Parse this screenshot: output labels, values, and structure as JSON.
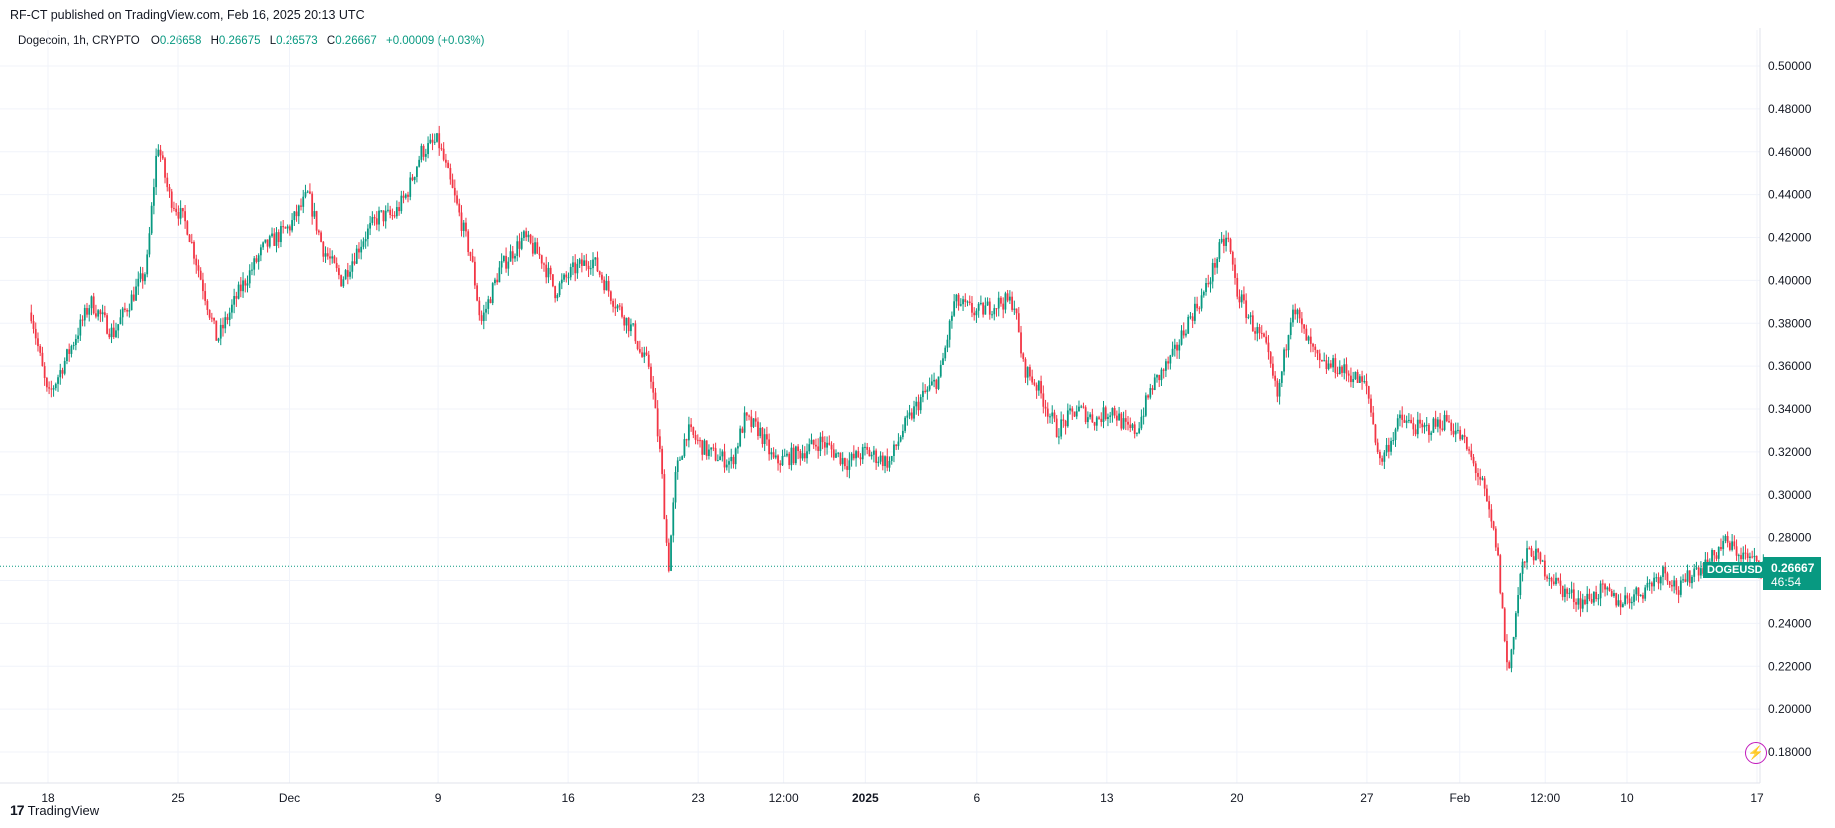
{
  "header": {
    "published": "RF-CT published on TradingView.com, Feb 16, 2025 20:13 UTC"
  },
  "legend": {
    "symbol": "Dogecoin, 1h, CRYPTO",
    "o_label": "O",
    "o": "0.26658",
    "h_label": "H",
    "h": "0.26675",
    "l_label": "L",
    "l": "0.26573",
    "c_label": "C",
    "c": "0.26667",
    "change": "+0.00009 (+0.03%)"
  },
  "price_tag": {
    "ticker": "DOGEUSD",
    "price": "0.26667",
    "countdown": "46:54"
  },
  "footer": {
    "brand": "TradingView",
    "logo": "17"
  },
  "colors": {
    "up": "#089981",
    "down": "#F23645",
    "grid": "#f0f3fa",
    "axis_text": "#131722",
    "last_price": "#089981",
    "bolt": "#c21bbd"
  },
  "icons": {
    "bolt": "lightning-bolt-icon",
    "logo": "tradingview-logo-icon"
  },
  "chart_data": {
    "type": "candlestick",
    "timeframe": "1h",
    "title": "Dogecoin, 1h, CRYPTO",
    "ylim": [
      0.17,
      0.51
    ],
    "y_ticks": [
      "0.50000",
      "0.48000",
      "0.46000",
      "0.44000",
      "0.42000",
      "0.40000",
      "0.38000",
      "0.36000",
      "0.34000",
      "0.32000",
      "0.30000",
      "0.28000",
      "0.26000",
      "0.24000",
      "0.22000",
      "0.20000",
      "0.18000"
    ],
    "x_ticks": [
      {
        "label": "18",
        "t": 1.2
      },
      {
        "label": "25",
        "t": 8.2
      },
      {
        "label": "Dec",
        "t": 14.2
      },
      {
        "label": "9",
        "t": 22.2
      },
      {
        "label": "16",
        "t": 29.2
      },
      {
        "label": "23",
        "t": 36.2
      },
      {
        "label": "12:00",
        "t": 40.8
      },
      {
        "label": "2025",
        "t": 45.2
      },
      {
        "label": "6",
        "t": 51.2
      },
      {
        "label": "13",
        "t": 58.2
      },
      {
        "label": "20",
        "t": 65.2
      },
      {
        "label": "27",
        "t": 72.2
      },
      {
        "label": "Feb",
        "t": 77.2
      },
      {
        "label": "12:00",
        "t": 81.8
      },
      {
        "label": "10",
        "t": 86.2
      },
      {
        "label": "17",
        "t": 93.2
      }
    ],
    "x_range": [
      0.3,
      93.6
    ],
    "grid": true,
    "last_price": 0.26667,
    "price_keypoints": [
      [
        0.3,
        0.385
      ],
      [
        1.2,
        0.345
      ],
      [
        2.5,
        0.37
      ],
      [
        3.5,
        0.39
      ],
      [
        4.7,
        0.375
      ],
      [
        6.5,
        0.405
      ],
      [
        7.1,
        0.465
      ],
      [
        7.7,
        0.44
      ],
      [
        8.7,
        0.425
      ],
      [
        10.3,
        0.372
      ],
      [
        11.5,
        0.395
      ],
      [
        12.8,
        0.415
      ],
      [
        14.2,
        0.425
      ],
      [
        15.2,
        0.44
      ],
      [
        16,
        0.415
      ],
      [
        17,
        0.4
      ],
      [
        18.2,
        0.42
      ],
      [
        19,
        0.43
      ],
      [
        19.8,
        0.43
      ],
      [
        20.5,
        0.44
      ],
      [
        21.3,
        0.46
      ],
      [
        22.2,
        0.465
      ],
      [
        23.2,
        0.435
      ],
      [
        24,
        0.41
      ],
      [
        24.5,
        0.38
      ],
      [
        25.5,
        0.405
      ],
      [
        26.8,
        0.42
      ],
      [
        27.8,
        0.41
      ],
      [
        28.5,
        0.395
      ],
      [
        29.5,
        0.405
      ],
      [
        30.5,
        0.41
      ],
      [
        31.7,
        0.39
      ],
      [
        32.8,
        0.375
      ],
      [
        33.1,
        0.365
      ],
      [
        33.6,
        0.36
      ],
      [
        34.2,
        0.315
      ],
      [
        34.6,
        0.265
      ],
      [
        35,
        0.31
      ],
      [
        35.6,
        0.33
      ],
      [
        36.7,
        0.32
      ],
      [
        38,
        0.315
      ],
      [
        38.7,
        0.335
      ],
      [
        39.5,
        0.33
      ],
      [
        40.3,
        0.315
      ],
      [
        41.8,
        0.32
      ],
      [
        42.8,
        0.325
      ],
      [
        43.5,
        0.32
      ],
      [
        44.2,
        0.315
      ],
      [
        45.2,
        0.32
      ],
      [
        46.5,
        0.315
      ],
      [
        47.2,
        0.33
      ],
      [
        48.2,
        0.345
      ],
      [
        49.2,
        0.355
      ],
      [
        50,
        0.39
      ],
      [
        51.2,
        0.385
      ],
      [
        52.5,
        0.39
      ],
      [
        53.2,
        0.39
      ],
      [
        53.7,
        0.36
      ],
      [
        54.5,
        0.35
      ],
      [
        55.5,
        0.33
      ],
      [
        56.6,
        0.34
      ],
      [
        57.6,
        0.335
      ],
      [
        58.5,
        0.34
      ],
      [
        59.3,
        0.33
      ],
      [
        59.8,
        0.33
      ],
      [
        60.6,
        0.35
      ],
      [
        61.8,
        0.365
      ],
      [
        62.5,
        0.38
      ],
      [
        63.5,
        0.395
      ],
      [
        64.3,
        0.415
      ],
      [
        64.7,
        0.42
      ],
      [
        65.2,
        0.395
      ],
      [
        66,
        0.38
      ],
      [
        66.7,
        0.37
      ],
      [
        67.4,
        0.345
      ],
      [
        68.2,
        0.39
      ],
      [
        68.8,
        0.375
      ],
      [
        69.7,
        0.36
      ],
      [
        70.5,
        0.36
      ],
      [
        71.5,
        0.355
      ],
      [
        72.2,
        0.35
      ],
      [
        72.9,
        0.315
      ],
      [
        74,
        0.335
      ],
      [
        75.2,
        0.33
      ],
      [
        76.5,
        0.335
      ],
      [
        77.4,
        0.325
      ],
      [
        78.4,
        0.305
      ],
      [
        79.2,
        0.275
      ],
      [
        79.8,
        0.215
      ],
      [
        80.5,
        0.265
      ],
      [
        81,
        0.275
      ],
      [
        81.8,
        0.265
      ],
      [
        82.8,
        0.255
      ],
      [
        83.8,
        0.25
      ],
      [
        84.8,
        0.255
      ],
      [
        85.8,
        0.25
      ],
      [
        87,
        0.255
      ],
      [
        88.2,
        0.265
      ],
      [
        89,
        0.255
      ],
      [
        89.8,
        0.265
      ],
      [
        90.6,
        0.268
      ],
      [
        91.4,
        0.278
      ],
      [
        92.4,
        0.272
      ],
      [
        93.2,
        0.268
      ]
    ]
  }
}
